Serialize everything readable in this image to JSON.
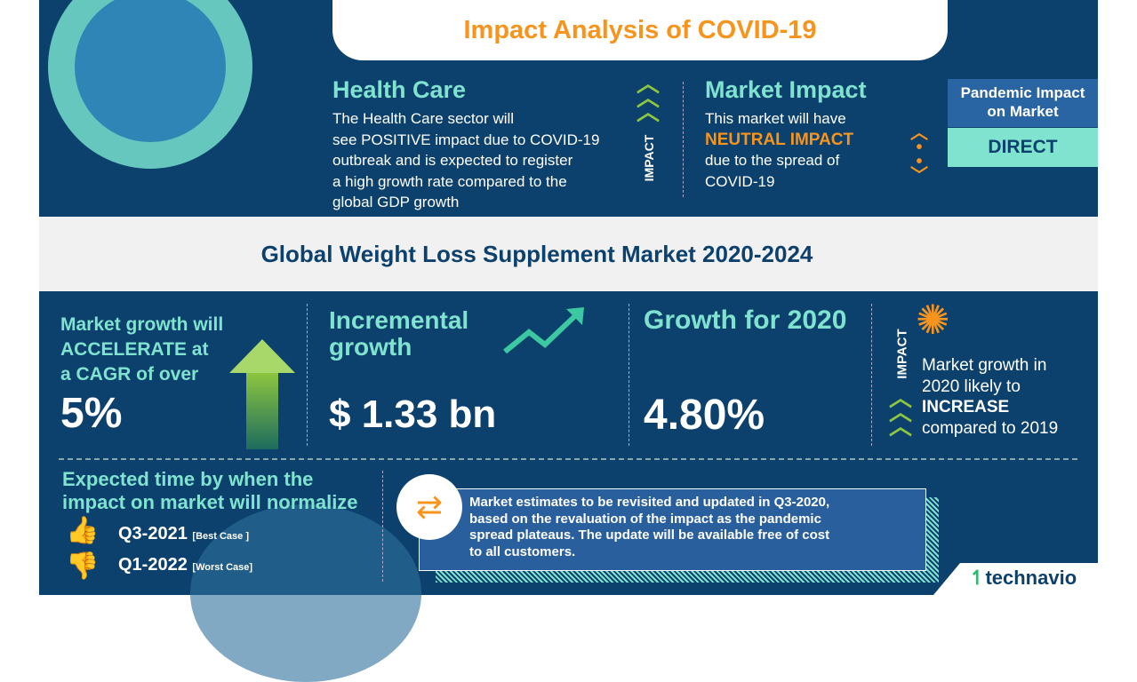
{
  "header": {
    "title": "Impact Analysis of COVID-19"
  },
  "health_care": {
    "title": "Health Care",
    "lines": [
      "The Health Care sector will",
      "see POSITIVE impact due to COVID-19",
      "outbreak and is expected to register",
      "a high growth rate compared to the",
      "global GDP growth"
    ]
  },
  "impact_label": "IMPACT",
  "market_impact": {
    "title": "Market Impact",
    "line1": "This market will have",
    "highlight": "NEUTRAL IMPACT",
    "line3": "due to the spread of",
    "line4": "COVID-19"
  },
  "pandemic": {
    "label_line1": "Pandemic Impact",
    "label_line2": "on Market",
    "value": "DIRECT"
  },
  "band_title": "Global Weight Loss Supplement Market 2020-2024",
  "cagr": {
    "line1": "Market growth will",
    "line2": "ACCELERATE at",
    "line3": "a CAGR of over",
    "value": "5%"
  },
  "incremental": {
    "line1": "Incremental",
    "line2": "growth",
    "value": "$ 1.33 bn"
  },
  "growth2020": {
    "label": "Growth for 2020",
    "value": "4.80%"
  },
  "impact2020": {
    "label": "IMPACT",
    "line1": "Market growth in",
    "line2": "2020 likely to",
    "highlight": "INCREASE",
    "line4": "compared to 2019"
  },
  "normalize": {
    "line1": "Expected time by when the",
    "line2": "impact on market will normalize",
    "best": "Q3-2021",
    "best_tag": "[Best Case ]",
    "worst": "Q1-2022",
    "worst_tag": "[Worst Case]"
  },
  "note": {
    "lines": [
      "Market estimates to be revisited and updated in Q3-2020,",
      "based on the revaluation of the impact as the pandemic",
      "spread plateaus. The update will be available free of cost",
      "to all customers."
    ]
  },
  "brand": {
    "name": "technavio"
  },
  "colors": {
    "navy": "#0d416d",
    "teal": "#7fe3d0",
    "orange": "#f7941d",
    "green": "#8dc63f",
    "red": "#f05a5a"
  }
}
